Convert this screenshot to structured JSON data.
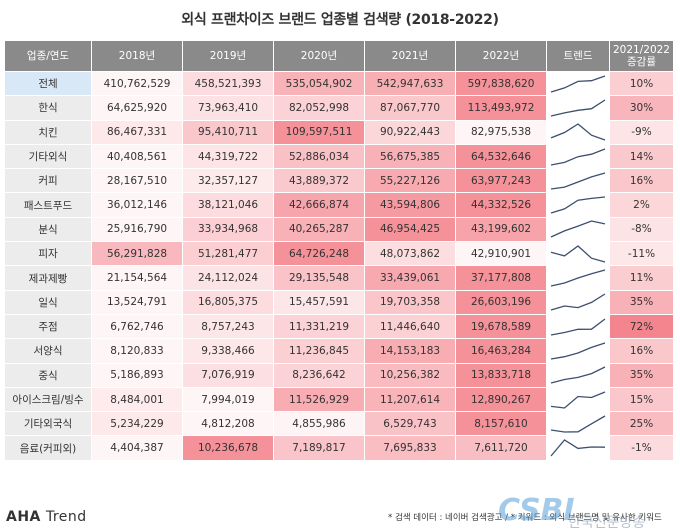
{
  "title": "외식 프랜차이즈 브랜드 업종별 검색량 (2018-2022)",
  "header": {
    "category": "업종/연도",
    "years": [
      "2018년",
      "2019년",
      "2020년",
      "2021년",
      "2022년"
    ],
    "trend": "트렌드",
    "growth_line1": "2021/2022",
    "growth_line2": "증감률"
  },
  "chart_data": {
    "type": "table",
    "title": "외식 프랜차이즈 브랜드 업종별 검색량 (2018-2022)",
    "columns": [
      "2018년",
      "2019년",
      "2020년",
      "2021년",
      "2022년"
    ],
    "rows": [
      {
        "category": "전체",
        "values": [
          410762529,
          458521393,
          535054902,
          542947633,
          597838620
        ],
        "growth": "10%",
        "growth_value": 10
      },
      {
        "category": "한식",
        "values": [
          64625920,
          73963410,
          82052998,
          87067770,
          113493972
        ],
        "growth": "30%",
        "growth_value": 30
      },
      {
        "category": "치킨",
        "values": [
          86467331,
          95410711,
          109597511,
          90922443,
          82975538
        ],
        "growth": "-9%",
        "growth_value": -9
      },
      {
        "category": "기타외식",
        "values": [
          40408561,
          44319722,
          52886034,
          56675385,
          64532646
        ],
        "growth": "14%",
        "growth_value": 14
      },
      {
        "category": "커피",
        "values": [
          28167510,
          32357127,
          43889372,
          55227126,
          63977243
        ],
        "growth": "16%",
        "growth_value": 16
      },
      {
        "category": "패스트푸드",
        "values": [
          36012146,
          38121046,
          42666874,
          43594806,
          44332526
        ],
        "growth": "2%",
        "growth_value": 2
      },
      {
        "category": "분식",
        "values": [
          25916790,
          33934968,
          40265287,
          46954425,
          43199602
        ],
        "growth": "-8%",
        "growth_value": -8
      },
      {
        "category": "피자",
        "values": [
          56291828,
          51281477,
          64726248,
          48073862,
          42910901
        ],
        "growth": "-11%",
        "growth_value": -11
      },
      {
        "category": "제과제빵",
        "values": [
          21154564,
          24112024,
          29135548,
          33439061,
          37177808
        ],
        "growth": "11%",
        "growth_value": 11
      },
      {
        "category": "일식",
        "values": [
          13524791,
          16805375,
          15457591,
          19703358,
          26603196
        ],
        "growth": "35%",
        "growth_value": 35
      },
      {
        "category": "주점",
        "values": [
          6762746,
          8757243,
          11331219,
          11446640,
          19678589
        ],
        "growth": "72%",
        "growth_value": 72
      },
      {
        "category": "서양식",
        "values": [
          8120833,
          9338466,
          11236845,
          14153183,
          16463284
        ],
        "growth": "16%",
        "growth_value": 16
      },
      {
        "category": "중식",
        "values": [
          5186893,
          7076919,
          8236642,
          10256382,
          13833718
        ],
        "growth": "35%",
        "growth_value": 35
      },
      {
        "category": "아이스크림/빙수",
        "values": [
          8484001,
          7994019,
          11526929,
          11207614,
          12890267
        ],
        "growth": "15%",
        "growth_value": 15
      },
      {
        "category": "기타외국식",
        "values": [
          5234229,
          4812208,
          4855986,
          6529743,
          8157610
        ],
        "growth": "25%",
        "growth_value": 25
      },
      {
        "category": "음료(커피외)",
        "values": [
          4404387,
          10236678,
          7189817,
          7695833,
          7611720
        ],
        "growth": "-1%",
        "growth_value": -1
      }
    ]
  },
  "colors": {
    "header_bg": "#8a8a8a",
    "category_bg": "#ececec",
    "first_category_bg": "#d9e8f7",
    "heat_low": "#ffffff",
    "heat_high": "#f4858e",
    "sparkline": "#3d4f6e"
  },
  "footer": {
    "logo_bold": "AHA",
    "logo_rest": " Trend",
    "note": "* 검색 데이터 : 네이버 검색광고 / * 키워드 : 외식 브랜드명 및 유사한 키워드"
  },
  "watermark": {
    "logo": "CSBI",
    "sub": "한국신문방송"
  }
}
